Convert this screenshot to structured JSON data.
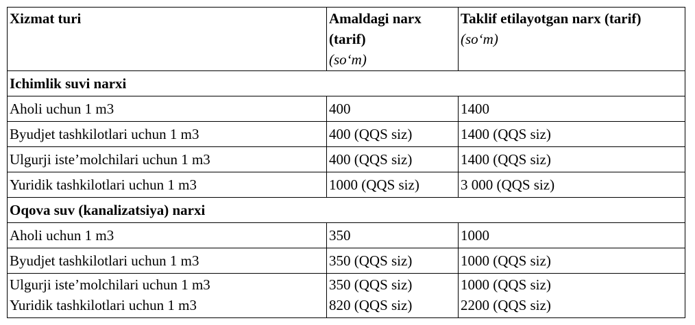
{
  "header": {
    "service": "Xizmat turi",
    "current": {
      "title": "Amaldagi narx (tarif)",
      "unit": "(so‘m)"
    },
    "proposed": {
      "title": "Taklif etilayotgan narx (tarif)",
      "unit": "(so‘m)"
    }
  },
  "sections": [
    {
      "title": "Ichimlik suvi narxi",
      "rows": [
        [
          "Aholi uchun 1 m3",
          "400",
          "1400"
        ],
        [
          "Byudjet tashkilotlari uchun 1 m3",
          "400 (QQS siz)",
          "1400 (QQS siz)"
        ],
        [
          "Ulgurji iste’molchilari uchun 1 m3",
          "400 (QQS siz)",
          "1400 (QQS siz)"
        ],
        [
          "Yuridik tashkilotlari uchun 1 m3",
          "1000 (QQS siz)",
          "3 000 (QQS siz)"
        ]
      ]
    },
    {
      "title": "Oqova suv (kanalizatsiya) narxi",
      "rows": [
        [
          "Aholi uchun 1 m3",
          "350",
          "1000"
        ],
        [
          "Byudjet tashkilotlari uchun 1 m3",
          "350 (QQS siz)",
          "1000 (QQS siz)"
        ],
        [
          [
            "Ulgurji iste’molchilari uchun 1 m3",
            "Yuridik tashkilotlari uchun 1 m3"
          ],
          [
            "350 (QQS siz)",
            "820 (QQS siz)"
          ],
          [
            "1000 (QQS siz)",
            "2200 (QQS siz)"
          ]
        ]
      ]
    }
  ]
}
